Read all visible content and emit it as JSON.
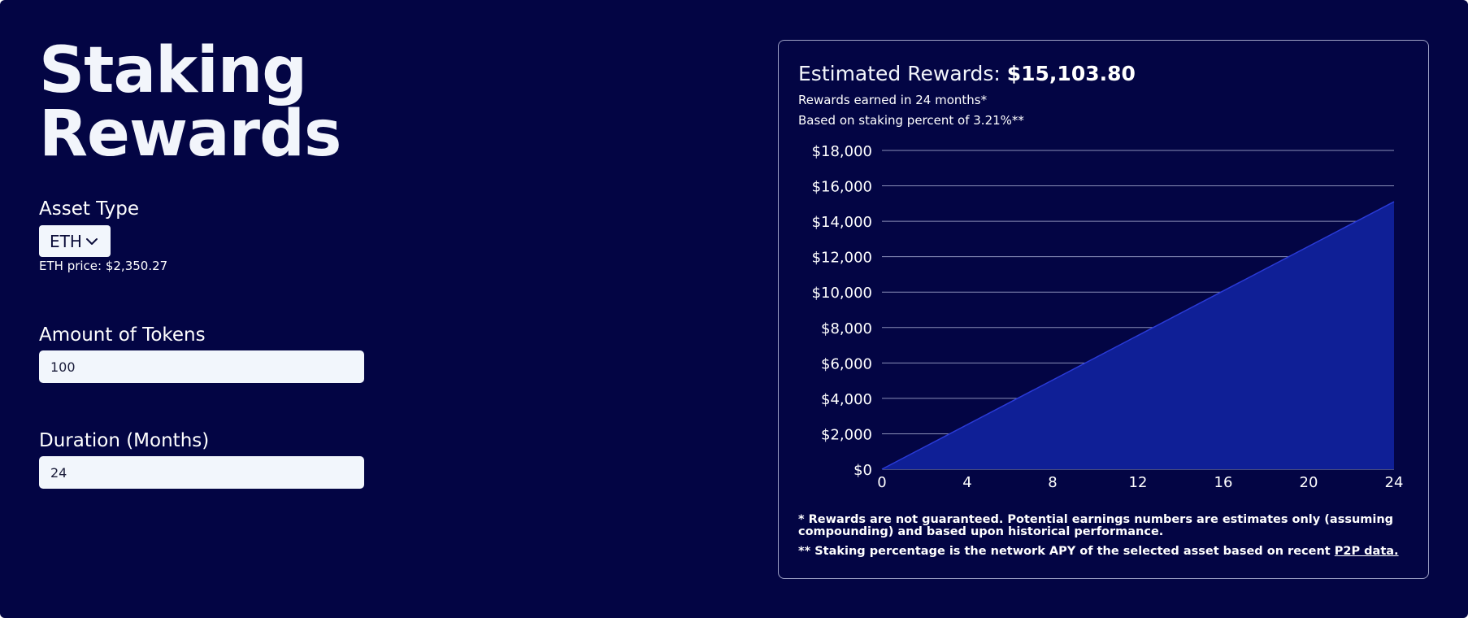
{
  "page": {
    "title_line1": "Staking",
    "title_line2": "Rewards"
  },
  "form": {
    "asset_type_label": "Asset Type",
    "asset_selected": "ETH",
    "asset_price_note": "ETH price: $2,350.27",
    "amount_label": "Amount of Tokens",
    "amount_value": "100",
    "duration_label": "Duration (Months)",
    "duration_value": "24"
  },
  "results": {
    "estimated_prefix": "Estimated Rewards: ",
    "estimated_value": "$15,103.80",
    "earned_note": "Rewards earned in 24 months*",
    "percent_note": "Based on staking percent of 3.21%**",
    "footnote1": "* Rewards are not guaranteed. Potential earnings numbers are estimates only (assuming compounding) and based upon historical performance.",
    "footnote2_prefix": "** Staking percentage is the network APY of the selected asset based on recent ",
    "footnote2_link": "P2P data."
  },
  "colors": {
    "background": "#030544",
    "area_fill": "#0f1f96",
    "area_line": "#2a3ad6",
    "grid": "#8a8fb8"
  },
  "chart_data": {
    "type": "area",
    "x": [
      0,
      24
    ],
    "y": [
      0,
      15103.8
    ],
    "x_ticks": [
      "0",
      "4",
      "8",
      "12",
      "16",
      "20",
      "24"
    ],
    "x_tick_values": [
      0,
      4,
      8,
      12,
      16,
      20,
      24
    ],
    "y_ticks": [
      "$0",
      "$2,000",
      "$4,000",
      "$6,000",
      "$8,000",
      "$10,000",
      "$12,000",
      "$14,000",
      "$16,000",
      "$18,000"
    ],
    "y_tick_values": [
      0,
      2000,
      4000,
      6000,
      8000,
      10000,
      12000,
      14000,
      16000,
      18000
    ],
    "xlim": [
      0,
      24
    ],
    "ylim": [
      0,
      18000
    ],
    "grid": true,
    "legend": "none"
  }
}
